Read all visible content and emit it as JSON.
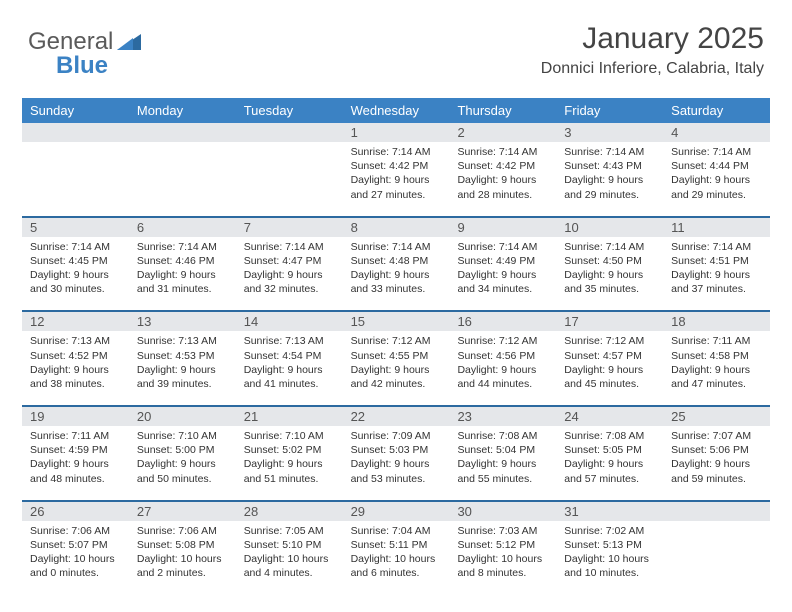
{
  "logo": {
    "word1": "General",
    "word2": "Blue"
  },
  "header": {
    "month_title": "January 2025",
    "location": "Donnici Inferiore, Calabria, Italy"
  },
  "colors": {
    "header_bg": "#3b82c4",
    "header_text": "#ffffff",
    "week_rule": "#2c6aa0",
    "daynum_bg": "#e5e7ea",
    "body_text": "#333333",
    "title_text": "#444444",
    "logo_gray": "#5a5a5a",
    "logo_blue": "#3b82c4",
    "page_bg": "#ffffff"
  },
  "typography": {
    "month_title_size": 30,
    "location_size": 16,
    "dayhead_size": 13,
    "daynum_size": 13,
    "body_size": 10.5
  },
  "day_headers": [
    "Sunday",
    "Monday",
    "Tuesday",
    "Wednesday",
    "Thursday",
    "Friday",
    "Saturday"
  ],
  "weeks": [
    {
      "nums": [
        "",
        "",
        "",
        "1",
        "2",
        "3",
        "4"
      ],
      "bodies": [
        "",
        "",
        "",
        "Sunrise: 7:14 AM\nSunset: 4:42 PM\nDaylight: 9 hours and 27 minutes.",
        "Sunrise: 7:14 AM\nSunset: 4:42 PM\nDaylight: 9 hours and 28 minutes.",
        "Sunrise: 7:14 AM\nSunset: 4:43 PM\nDaylight: 9 hours and 29 minutes.",
        "Sunrise: 7:14 AM\nSunset: 4:44 PM\nDaylight: 9 hours and 29 minutes."
      ]
    },
    {
      "nums": [
        "5",
        "6",
        "7",
        "8",
        "9",
        "10",
        "11"
      ],
      "bodies": [
        "Sunrise: 7:14 AM\nSunset: 4:45 PM\nDaylight: 9 hours and 30 minutes.",
        "Sunrise: 7:14 AM\nSunset: 4:46 PM\nDaylight: 9 hours and 31 minutes.",
        "Sunrise: 7:14 AM\nSunset: 4:47 PM\nDaylight: 9 hours and 32 minutes.",
        "Sunrise: 7:14 AM\nSunset: 4:48 PM\nDaylight: 9 hours and 33 minutes.",
        "Sunrise: 7:14 AM\nSunset: 4:49 PM\nDaylight: 9 hours and 34 minutes.",
        "Sunrise: 7:14 AM\nSunset: 4:50 PM\nDaylight: 9 hours and 35 minutes.",
        "Sunrise: 7:14 AM\nSunset: 4:51 PM\nDaylight: 9 hours and 37 minutes."
      ]
    },
    {
      "nums": [
        "12",
        "13",
        "14",
        "15",
        "16",
        "17",
        "18"
      ],
      "bodies": [
        "Sunrise: 7:13 AM\nSunset: 4:52 PM\nDaylight: 9 hours and 38 minutes.",
        "Sunrise: 7:13 AM\nSunset: 4:53 PM\nDaylight: 9 hours and 39 minutes.",
        "Sunrise: 7:13 AM\nSunset: 4:54 PM\nDaylight: 9 hours and 41 minutes.",
        "Sunrise: 7:12 AM\nSunset: 4:55 PM\nDaylight: 9 hours and 42 minutes.",
        "Sunrise: 7:12 AM\nSunset: 4:56 PM\nDaylight: 9 hours and 44 minutes.",
        "Sunrise: 7:12 AM\nSunset: 4:57 PM\nDaylight: 9 hours and 45 minutes.",
        "Sunrise: 7:11 AM\nSunset: 4:58 PM\nDaylight: 9 hours and 47 minutes."
      ]
    },
    {
      "nums": [
        "19",
        "20",
        "21",
        "22",
        "23",
        "24",
        "25"
      ],
      "bodies": [
        "Sunrise: 7:11 AM\nSunset: 4:59 PM\nDaylight: 9 hours and 48 minutes.",
        "Sunrise: 7:10 AM\nSunset: 5:00 PM\nDaylight: 9 hours and 50 minutes.",
        "Sunrise: 7:10 AM\nSunset: 5:02 PM\nDaylight: 9 hours and 51 minutes.",
        "Sunrise: 7:09 AM\nSunset: 5:03 PM\nDaylight: 9 hours and 53 minutes.",
        "Sunrise: 7:08 AM\nSunset: 5:04 PM\nDaylight: 9 hours and 55 minutes.",
        "Sunrise: 7:08 AM\nSunset: 5:05 PM\nDaylight: 9 hours and 57 minutes.",
        "Sunrise: 7:07 AM\nSunset: 5:06 PM\nDaylight: 9 hours and 59 minutes."
      ]
    },
    {
      "nums": [
        "26",
        "27",
        "28",
        "29",
        "30",
        "31",
        ""
      ],
      "bodies": [
        "Sunrise: 7:06 AM\nSunset: 5:07 PM\nDaylight: 10 hours and 0 minutes.",
        "Sunrise: 7:06 AM\nSunset: 5:08 PM\nDaylight: 10 hours and 2 minutes.",
        "Sunrise: 7:05 AM\nSunset: 5:10 PM\nDaylight: 10 hours and 4 minutes.",
        "Sunrise: 7:04 AM\nSunset: 5:11 PM\nDaylight: 10 hours and 6 minutes.",
        "Sunrise: 7:03 AM\nSunset: 5:12 PM\nDaylight: 10 hours and 8 minutes.",
        "Sunrise: 7:02 AM\nSunset: 5:13 PM\nDaylight: 10 hours and 10 minutes.",
        ""
      ]
    }
  ]
}
